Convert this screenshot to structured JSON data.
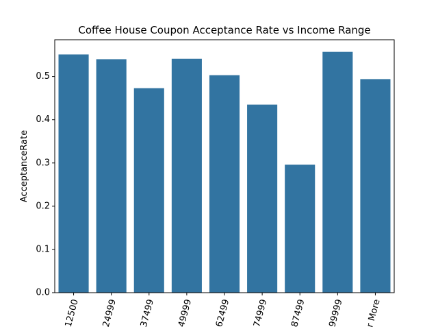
{
  "chart_data": {
    "type": "bar",
    "title": "Coffee House Coupon Acceptance Rate vs Income Range",
    "xlabel": "",
    "ylabel": "AcceptanceRate",
    "categories": [
      "12500",
      "24999",
      "37499",
      "49999",
      "62499",
      "74999",
      "87499",
      "99999",
      "r More"
    ],
    "values": [
      0.551,
      0.54,
      0.473,
      0.541,
      0.503,
      0.435,
      0.296,
      0.557,
      0.494
    ],
    "ylim": [
      0,
      0.585
    ],
    "yticks": [
      0.0,
      0.1,
      0.2,
      0.3,
      0.4,
      0.5
    ],
    "ytick_labels": [
      "0.0",
      "0.1",
      "0.2",
      "0.3",
      "0.4",
      "0.5"
    ],
    "grid": false,
    "legend": "none",
    "bar_color": "#3274a1"
  }
}
